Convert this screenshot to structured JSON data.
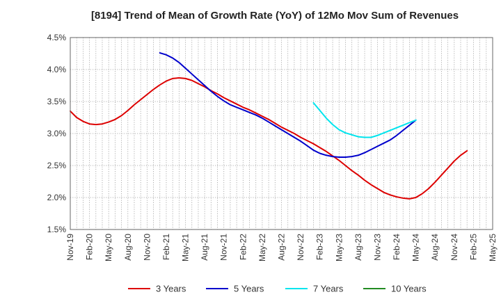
{
  "chart_data": {
    "type": "line",
    "title": "[8194]  Trend of Mean of Growth Rate (YoY) of 12Mo Mov Sum of Revenues",
    "xlabel": "",
    "ylabel": "",
    "ylim": [
      1.5,
      4.5
    ],
    "y_ticks": [
      "1.5%",
      "2.0%",
      "2.5%",
      "3.0%",
      "3.5%",
      "4.0%",
      "4.5%"
    ],
    "y_tick_values": [
      1.5,
      2.0,
      2.5,
      3.0,
      3.5,
      4.0,
      4.5
    ],
    "x_ticks": [
      "Nov-19",
      "Feb-20",
      "May-20",
      "Aug-20",
      "Nov-20",
      "Feb-21",
      "May-21",
      "Aug-21",
      "Nov-21",
      "Feb-22",
      "May-22",
      "Aug-22",
      "Nov-22",
      "Feb-23",
      "May-23",
      "Aug-23",
      "Nov-23",
      "Feb-24",
      "May-24",
      "Aug-24",
      "Nov-24",
      "Feb-25",
      "May-25"
    ],
    "x_range_months": [
      0,
      66
    ],
    "grid": true,
    "legend_position": "bottom",
    "series": [
      {
        "name": "3 Years",
        "color": "#dd0000",
        "points": [
          [
            0,
            3.35
          ],
          [
            1,
            3.25
          ],
          [
            2,
            3.19
          ],
          [
            3,
            3.15
          ],
          [
            4,
            3.14
          ],
          [
            5,
            3.15
          ],
          [
            6,
            3.18
          ],
          [
            7,
            3.22
          ],
          [
            8,
            3.28
          ],
          [
            9,
            3.36
          ],
          [
            10,
            3.45
          ],
          [
            11,
            3.53
          ],
          [
            12,
            3.61
          ],
          [
            13,
            3.69
          ],
          [
            14,
            3.76
          ],
          [
            15,
            3.82
          ],
          [
            16,
            3.86
          ],
          [
            17,
            3.87
          ],
          [
            18,
            3.86
          ],
          [
            19,
            3.83
          ],
          [
            20,
            3.78
          ],
          [
            21,
            3.73
          ],
          [
            22,
            3.67
          ],
          [
            23,
            3.62
          ],
          [
            24,
            3.56
          ],
          [
            25,
            3.51
          ],
          [
            26,
            3.46
          ],
          [
            27,
            3.41
          ],
          [
            28,
            3.37
          ],
          [
            29,
            3.32
          ],
          [
            30,
            3.27
          ],
          [
            31,
            3.22
          ],
          [
            32,
            3.16
          ],
          [
            33,
            3.1
          ],
          [
            34,
            3.05
          ],
          [
            35,
            3.0
          ],
          [
            36,
            2.94
          ],
          [
            37,
            2.89
          ],
          [
            38,
            2.84
          ],
          [
            39,
            2.78
          ],
          [
            40,
            2.72
          ],
          [
            41,
            2.65
          ],
          [
            42,
            2.58
          ],
          [
            43,
            2.5
          ],
          [
            44,
            2.42
          ],
          [
            45,
            2.35
          ],
          [
            46,
            2.27
          ],
          [
            47,
            2.2
          ],
          [
            48,
            2.14
          ],
          [
            49,
            2.08
          ],
          [
            50,
            2.04
          ],
          [
            51,
            2.01
          ],
          [
            52,
            1.99
          ],
          [
            53,
            1.98
          ],
          [
            54,
            2.0
          ],
          [
            55,
            2.06
          ],
          [
            56,
            2.14
          ],
          [
            57,
            2.24
          ],
          [
            58,
            2.35
          ],
          [
            59,
            2.46
          ],
          [
            60,
            2.57
          ],
          [
            61,
            2.66
          ],
          [
            62,
            2.73
          ]
        ]
      },
      {
        "name": "5 Years",
        "color": "#0000cc",
        "points": [
          [
            14,
            4.26
          ],
          [
            15,
            4.23
          ],
          [
            16,
            4.18
          ],
          [
            17,
            4.11
          ],
          [
            18,
            4.02
          ],
          [
            19,
            3.93
          ],
          [
            20,
            3.84
          ],
          [
            21,
            3.75
          ],
          [
            22,
            3.66
          ],
          [
            23,
            3.58
          ],
          [
            24,
            3.51
          ],
          [
            25,
            3.45
          ],
          [
            26,
            3.41
          ],
          [
            27,
            3.37
          ],
          [
            28,
            3.33
          ],
          [
            29,
            3.29
          ],
          [
            30,
            3.24
          ],
          [
            31,
            3.18
          ],
          [
            32,
            3.12
          ],
          [
            33,
            3.06
          ],
          [
            34,
            3.0
          ],
          [
            35,
            2.94
          ],
          [
            36,
            2.88
          ],
          [
            37,
            2.81
          ],
          [
            38,
            2.74
          ],
          [
            39,
            2.69
          ],
          [
            40,
            2.66
          ],
          [
            41,
            2.64
          ],
          [
            42,
            2.63
          ],
          [
            43,
            2.63
          ],
          [
            44,
            2.64
          ],
          [
            45,
            2.66
          ],
          [
            46,
            2.7
          ],
          [
            47,
            2.75
          ],
          [
            48,
            2.8
          ],
          [
            49,
            2.85
          ],
          [
            50,
            2.9
          ],
          [
            51,
            2.97
          ],
          [
            52,
            3.05
          ],
          [
            53,
            3.13
          ],
          [
            54,
            3.21
          ]
        ]
      },
      {
        "name": "7 Years",
        "color": "#00e5ee",
        "points": [
          [
            38,
            3.48
          ],
          [
            39,
            3.36
          ],
          [
            40,
            3.24
          ],
          [
            41,
            3.14
          ],
          [
            42,
            3.06
          ],
          [
            43,
            3.01
          ],
          [
            44,
            2.98
          ],
          [
            45,
            2.95
          ],
          [
            46,
            2.94
          ],
          [
            47,
            2.94
          ],
          [
            48,
            2.97
          ],
          [
            49,
            3.01
          ],
          [
            50,
            3.05
          ],
          [
            51,
            3.09
          ],
          [
            52,
            3.13
          ],
          [
            53,
            3.17
          ],
          [
            54,
            3.21
          ]
        ]
      },
      {
        "name": "10 Years",
        "color": "#228b22",
        "points": []
      }
    ]
  }
}
